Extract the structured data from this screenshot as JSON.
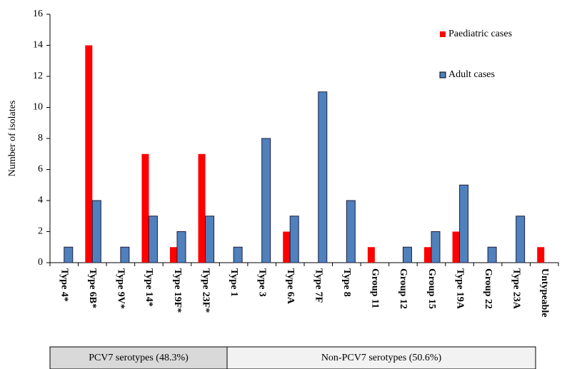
{
  "chart_data": {
    "type": "bar",
    "ylabel": "Number of isolates",
    "categories": [
      "Type 4*",
      "Type 6B*",
      "Type 9V*",
      "Type 14*",
      "Type 19F*",
      "Type 23F*",
      "Type 1",
      "Type 3",
      "Type 6A",
      "Type 7F",
      "Type 8",
      "Group 11",
      "Group 12",
      "Group 15",
      "Type 19A",
      "Group 22",
      "Type 23A",
      "Untypeable"
    ],
    "series": [
      {
        "name": "Paediatric cases",
        "color": "#ff0000",
        "values": [
          0,
          14,
          0,
          7,
          1,
          7,
          0,
          0,
          2,
          0,
          0,
          1,
          0,
          1,
          2,
          0,
          0,
          1
        ]
      },
      {
        "name": "Adult cases",
        "color": "#4f81bd",
        "values": [
          1,
          4,
          1,
          3,
          2,
          3,
          1,
          8,
          3,
          11,
          4,
          0,
          1,
          2,
          5,
          1,
          3,
          0
        ]
      }
    ],
    "ylim": [
      0,
      16
    ],
    "yticks": [
      0,
      2,
      4,
      6,
      8,
      10,
      12,
      14,
      16
    ],
    "annotations": [
      "PCV7 serotypes (48.3%)",
      "Non-PCV7 serotypes (50.6%)"
    ]
  }
}
